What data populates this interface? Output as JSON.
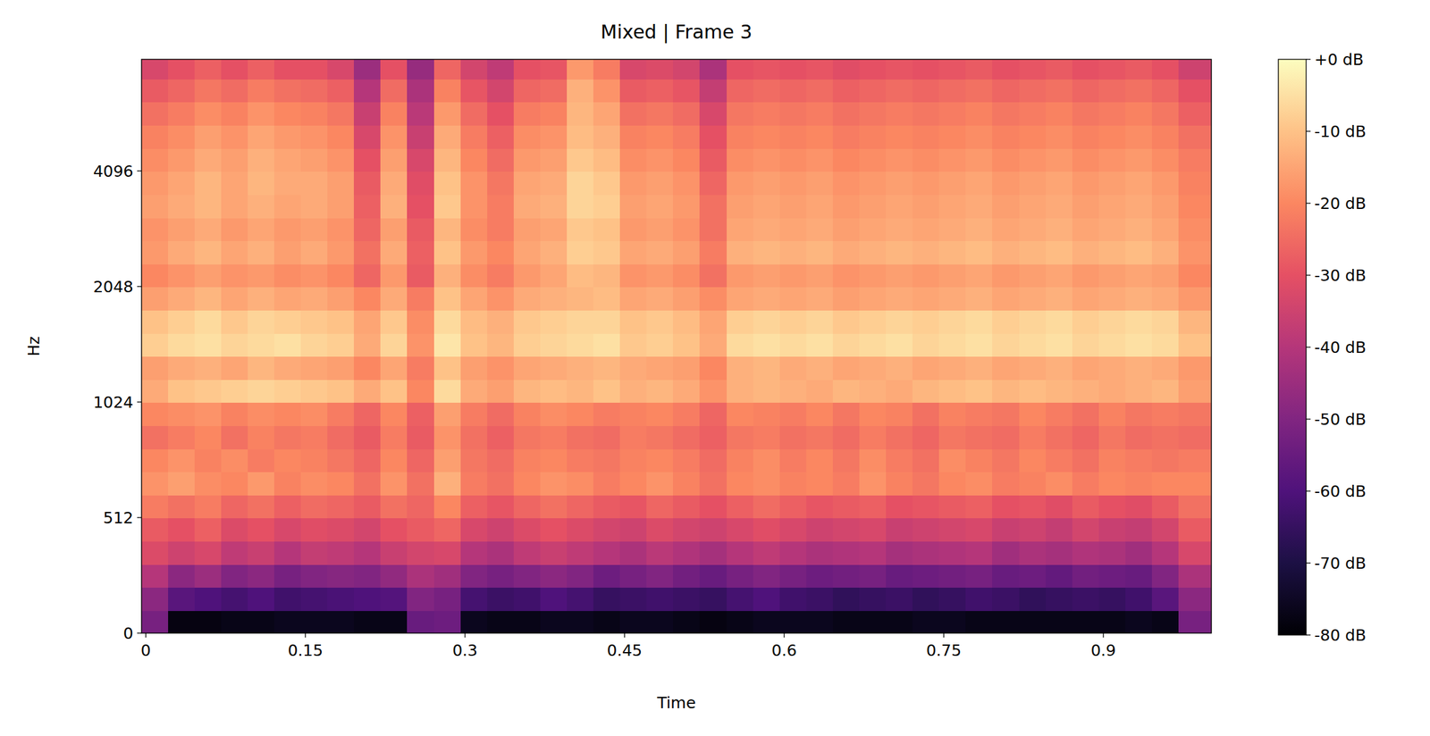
{
  "chart_data": {
    "type": "heatmap",
    "title": "Mixed | Frame 3",
    "x_label": "Time",
    "y_label": "Hz",
    "color": "magma",
    "log": "y",
    "grid": false,
    "xlim": [
      -0.004,
      1.0015
    ],
    "xticks": [
      0,
      0.15,
      0.3,
      0.45,
      0.6,
      0.75,
      0.9
    ],
    "ylim": [
      0,
      8000
    ],
    "yticks": [
      0,
      512,
      1024,
      2048,
      4096
    ],
    "x_edges": [
      -0.004,
      0.021,
      0.046,
      0.071,
      0.096,
      0.121,
      0.146,
      0.171,
      0.196,
      0.221,
      0.246,
      0.271,
      0.296,
      0.321,
      0.346,
      0.371,
      0.396,
      0.421,
      0.446,
      0.471,
      0.496,
      0.521,
      0.546,
      0.571,
      0.596,
      0.621,
      0.646,
      0.671,
      0.696,
      0.721,
      0.746,
      0.771,
      0.796,
      0.821,
      0.846,
      0.871,
      0.896,
      0.921,
      0.946,
      0.971,
      1.0015
    ],
    "y_edges": [
      0,
      102,
      205,
      307,
      410,
      512,
      614,
      717,
      819,
      922,
      1024,
      1176,
      1351,
      1552,
      1783,
      2048,
      2353,
      2702,
      3104,
      3566,
      4096,
      4705,
      5405,
      6208,
      7132,
      8000
    ],
    "cells": [
      [
        -52,
        -78,
        -78,
        -77,
        -77,
        -76,
        -76,
        -76,
        -77,
        -77,
        -55,
        -54,
        -76,
        -77,
        -77,
        -76,
        -76,
        -77,
        -76,
        -76,
        -77,
        -78,
        -77,
        -76,
        -76,
        -76,
        -77,
        -77,
        -77,
        -76,
        -76,
        -77,
        -77,
        -77,
        -77,
        -77,
        -77,
        -76,
        -77,
        -52
      ],
      [
        -48,
        -58,
        -60,
        -62,
        -60,
        -63,
        -62,
        -61,
        -60,
        -59,
        -50,
        -52,
        -62,
        -64,
        -63,
        -60,
        -62,
        -65,
        -64,
        -63,
        -64,
        -65,
        -62,
        -60,
        -63,
        -64,
        -66,
        -65,
        -64,
        -66,
        -65,
        -63,
        -64,
        -66,
        -65,
        -64,
        -65,
        -63,
        -58,
        -48
      ],
      [
        -40,
        -48,
        -45,
        -50,
        -48,
        -52,
        -50,
        -49,
        -50,
        -47,
        -42,
        -44,
        -50,
        -52,
        -50,
        -48,
        -50,
        -54,
        -52,
        -50,
        -53,
        -55,
        -52,
        -50,
        -52,
        -54,
        -53,
        -52,
        -55,
        -54,
        -53,
        -52,
        -55,
        -54,
        -56,
        -53,
        -54,
        -55,
        -50,
        -42
      ],
      [
        -32,
        -35,
        -33,
        -38,
        -36,
        -40,
        -37,
        -38,
        -40,
        -36,
        -34,
        -33,
        -40,
        -42,
        -38,
        -36,
        -38,
        -40,
        -42,
        -39,
        -41,
        -43,
        -40,
        -38,
        -40,
        -42,
        -41,
        -40,
        -43,
        -42,
        -41,
        -40,
        -44,
        -42,
        -43,
        -41,
        -42,
        -44,
        -40,
        -33
      ],
      [
        -28,
        -30,
        -27,
        -32,
        -30,
        -33,
        -31,
        -32,
        -34,
        -30,
        -28,
        -26,
        -33,
        -35,
        -32,
        -30,
        -32,
        -34,
        -35,
        -32,
        -34,
        -35,
        -33,
        -31,
        -33,
        -35,
        -34,
        -33,
        -36,
        -35,
        -34,
        -33,
        -36,
        -35,
        -37,
        -34,
        -36,
        -37,
        -34,
        -28
      ],
      [
        -22,
        -24,
        -22,
        -26,
        -24,
        -27,
        -25,
        -26,
        -28,
        -24,
        -26,
        -20,
        -27,
        -29,
        -26,
        -24,
        -26,
        -28,
        -29,
        -26,
        -28,
        -30,
        -27,
        -25,
        -27,
        -29,
        -28,
        -27,
        -30,
        -29,
        -28,
        -27,
        -30,
        -29,
        -31,
        -28,
        -30,
        -31,
        -28,
        -24
      ],
      [
        -18,
        -16,
        -19,
        -20,
        -17,
        -21,
        -19,
        -20,
        -24,
        -18,
        -24,
        -13,
        -22,
        -24,
        -20,
        -18,
        -19,
        -22,
        -20,
        -18,
        -21,
        -24,
        -20,
        -19,
        -21,
        -20,
        -22,
        -18,
        -21,
        -23,
        -20,
        -19,
        -22,
        -21,
        -19,
        -22,
        -20,
        -21,
        -20,
        -20
      ],
      [
        -20,
        -18,
        -21,
        -19,
        -22,
        -20,
        -21,
        -23,
        -26,
        -20,
        -26,
        -16,
        -23,
        -25,
        -21,
        -20,
        -22,
        -23,
        -21,
        -20,
        -22,
        -25,
        -21,
        -19,
        -22,
        -20,
        -23,
        -19,
        -22,
        -24,
        -19,
        -21,
        -23,
        -20,
        -22,
        -24,
        -21,
        -22,
        -23,
        -22
      ],
      [
        -24,
        -22,
        -20,
        -24,
        -21,
        -23,
        -22,
        -25,
        -28,
        -22,
        -28,
        -18,
        -24,
        -27,
        -23,
        -22,
        -24,
        -25,
        -22,
        -23,
        -25,
        -27,
        -23,
        -22,
        -24,
        -23,
        -25,
        -22,
        -24,
        -26,
        -23,
        -24,
        -25,
        -22,
        -24,
        -26,
        -23,
        -25,
        -24,
        -25
      ],
      [
        -20,
        -19,
        -18,
        -21,
        -19,
        -20,
        -19,
        -22,
        -26,
        -20,
        -27,
        -16,
        -22,
        -25,
        -21,
        -19,
        -20,
        -22,
        -21,
        -20,
        -22,
        -26,
        -20,
        -21,
        -22,
        -20,
        -23,
        -20,
        -21,
        -24,
        -21,
        -22,
        -23,
        -20,
        -22,
        -24,
        -21,
        -23,
        -22,
        -23
      ],
      [
        -14,
        -10,
        -9,
        -8,
        -7,
        -8,
        -9,
        -10,
        -14,
        -10,
        -20,
        -6,
        -14,
        -16,
        -12,
        -11,
        -12,
        -10,
        -13,
        -12,
        -14,
        -18,
        -13,
        -12,
        -13,
        -14,
        -12,
        -13,
        -14,
        -12,
        -11,
        -10,
        -12,
        -11,
        -12,
        -13,
        -14,
        -13,
        -12,
        -16
      ],
      [
        -16,
        -14,
        -13,
        -15,
        -12,
        -14,
        -15,
        -16,
        -20,
        -15,
        -22,
        -10,
        -16,
        -18,
        -15,
        -14,
        -13,
        -12,
        -14,
        -15,
        -16,
        -20,
        -13,
        -12,
        -14,
        -13,
        -15,
        -14,
        -13,
        -15,
        -14,
        -13,
        -15,
        -14,
        -13,
        -15,
        -14,
        -13,
        -14,
        -17
      ],
      [
        -8,
        -6,
        -5,
        -7,
        -6,
        -5,
        -7,
        -8,
        -14,
        -7,
        -18,
        -4,
        -10,
        -12,
        -8,
        -7,
        -6,
        -5,
        -9,
        -8,
        -10,
        -14,
        -6,
        -5,
        -6,
        -5,
        -7,
        -6,
        -5,
        -7,
        -6,
        -5,
        -7,
        -6,
        -5,
        -7,
        -6,
        -5,
        -6,
        -10
      ],
      [
        -10,
        -8,
        -6,
        -9,
        -7,
        -8,
        -9,
        -10,
        -15,
        -9,
        -19,
        -6,
        -11,
        -13,
        -9,
        -8,
        -7,
        -7,
        -10,
        -9,
        -11,
        -15,
        -8,
        -7,
        -8,
        -7,
        -9,
        -8,
        -7,
        -8,
        -7,
        -6,
        -8,
        -7,
        -6,
        -8,
        -7,
        -6,
        -7,
        -12
      ],
      [
        -16,
        -14,
        -12,
        -15,
        -13,
        -15,
        -14,
        -16,
        -20,
        -14,
        -22,
        -10,
        -15,
        -18,
        -14,
        -13,
        -12,
        -11,
        -15,
        -14,
        -16,
        -19,
        -15,
        -14,
        -15,
        -14,
        -16,
        -15,
        -14,
        -15,
        -14,
        -13,
        -15,
        -14,
        -13,
        -15,
        -14,
        -13,
        -14,
        -17
      ],
      [
        -20,
        -18,
        -16,
        -18,
        -17,
        -19,
        -18,
        -20,
        -26,
        -17,
        -28,
        -13,
        -19,
        -22,
        -17,
        -15,
        -11,
        -12,
        -18,
        -17,
        -19,
        -24,
        -17,
        -16,
        -17,
        -16,
        -18,
        -17,
        -16,
        -17,
        -16,
        -15,
        -17,
        -16,
        -15,
        -17,
        -16,
        -15,
        -16,
        -20
      ],
      [
        -17,
        -14,
        -12,
        -15,
        -13,
        -16,
        -14,
        -17,
        -24,
        -14,
        -27,
        -10,
        -17,
        -20,
        -15,
        -13,
        -8,
        -9,
        -15,
        -14,
        -16,
        -22,
        -13,
        -12,
        -13,
        -12,
        -14,
        -13,
        -12,
        -13,
        -12,
        -11,
        -13,
        -12,
        -11,
        -13,
        -12,
        -11,
        -13,
        -18
      ],
      [
        -18,
        -16,
        -14,
        -17,
        -15,
        -17,
        -16,
        -18,
        -26,
        -16,
        -28,
        -12,
        -19,
        -22,
        -16,
        -15,
        -9,
        -10,
        -17,
        -16,
        -18,
        -24,
        -15,
        -14,
        -15,
        -14,
        -16,
        -15,
        -14,
        -15,
        -14,
        -13,
        -15,
        -14,
        -13,
        -15,
        -14,
        -13,
        -15,
        -19
      ],
      [
        -16,
        -14,
        -12,
        -15,
        -13,
        -15,
        -14,
        -16,
        -27,
        -13,
        -30,
        -9,
        -18,
        -22,
        -14,
        -13,
        -7,
        -8,
        -16,
        -15,
        -17,
        -24,
        -16,
        -15,
        -16,
        -15,
        -17,
        -16,
        -15,
        -16,
        -15,
        -14,
        -16,
        -15,
        -14,
        -16,
        -15,
        -14,
        -16,
        -20
      ],
      [
        -17,
        -15,
        -12,
        -15,
        -12,
        -14,
        -14,
        -16,
        -28,
        -14,
        -31,
        -10,
        -18,
        -23,
        -15,
        -14,
        -7,
        -9,
        -17,
        -16,
        -18,
        -26,
        -17,
        -16,
        -17,
        -16,
        -18,
        -17,
        -16,
        -17,
        -16,
        -15,
        -17,
        -16,
        -15,
        -17,
        -16,
        -15,
        -17,
        -21
      ],
      [
        -19,
        -17,
        -14,
        -16,
        -13,
        -15,
        -16,
        -18,
        -30,
        -16,
        -33,
        -12,
        -20,
        -25,
        -17,
        -16,
        -9,
        -11,
        -19,
        -18,
        -20,
        -28,
        -19,
        -18,
        -19,
        -18,
        -20,
        -19,
        -18,
        -19,
        -18,
        -17,
        -19,
        -18,
        -17,
        -19,
        -18,
        -17,
        -19,
        -22
      ],
      [
        -21,
        -19,
        -16,
        -18,
        -15,
        -17,
        -18,
        -20,
        -33,
        -18,
        -36,
        -14,
        -22,
        -27,
        -19,
        -18,
        -11,
        -13,
        -21,
        -20,
        -22,
        -30,
        -21,
        -20,
        -21,
        -20,
        -22,
        -21,
        -20,
        -21,
        -20,
        -19,
        -21,
        -20,
        -19,
        -21,
        -20,
        -19,
        -21,
        -24
      ],
      [
        -24,
        -22,
        -19,
        -21,
        -18,
        -20,
        -21,
        -23,
        -36,
        -21,
        -39,
        -17,
        -25,
        -30,
        -22,
        -21,
        -12,
        -15,
        -24,
        -23,
        -25,
        -33,
        -23,
        -22,
        -23,
        -22,
        -24,
        -23,
        -22,
        -23,
        -22,
        -21,
        -23,
        -22,
        -21,
        -23,
        -22,
        -21,
        -23,
        -27
      ],
      [
        -28,
        -26,
        -23,
        -25,
        -22,
        -24,
        -25,
        -27,
        -40,
        -25,
        -42,
        -21,
        -29,
        -34,
        -26,
        -25,
        -13,
        -18,
        -28,
        -27,
        -29,
        -37,
        -26,
        -25,
        -26,
        -25,
        -27,
        -26,
        -25,
        -26,
        -25,
        -24,
        -26,
        -25,
        -24,
        -26,
        -25,
        -24,
        -26,
        -30
      ],
      [
        -33,
        -30,
        -27,
        -30,
        -27,
        -30,
        -30,
        -33,
        -45,
        -30,
        -46,
        -26,
        -34,
        -38,
        -30,
        -29,
        -17,
        -22,
        -33,
        -32,
        -34,
        -42,
        -30,
        -29,
        -30,
        -29,
        -31,
        -30,
        -29,
        -30,
        -29,
        -28,
        -30,
        -29,
        -28,
        -30,
        -29,
        -28,
        -30,
        -35
      ]
    ],
    "colorbar_range": [
      -80,
      0
    ],
    "colorbar_ticks": [
      {
        "value": 0,
        "label": "+0 dB"
      },
      {
        "value": -10,
        "label": "-10 dB"
      },
      {
        "value": -20,
        "label": "-20 dB"
      },
      {
        "value": -30,
        "label": "-30 dB"
      },
      {
        "value": -40,
        "label": "-40 dB"
      },
      {
        "value": -50,
        "label": "-50 dB"
      },
      {
        "value": -60,
        "label": "-60 dB"
      },
      {
        "value": -70,
        "label": "-70 dB"
      },
      {
        "value": -80,
        "label": "-80 dB"
      }
    ]
  }
}
